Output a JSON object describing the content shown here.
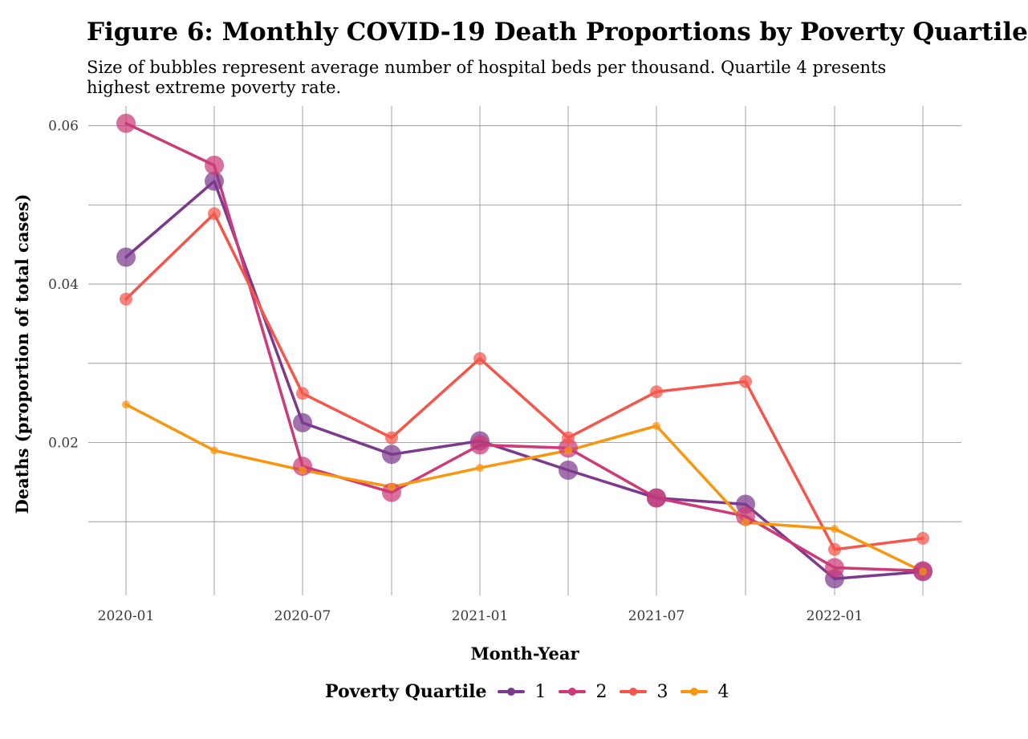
{
  "title": "Figure 6: Monthly COVID-19 Death Proportions by Poverty Quartile",
  "subtitle": "Size of bubbles represent average number of hospital beds per thousand. Quartile 4 presents highest extreme poverty rate.",
  "chart_data": {
    "type": "line",
    "xlabel": "Month-Year",
    "ylabel": "Deaths (proportion of total cases)",
    "x": [
      "2020-01",
      "2020-04",
      "2020-07",
      "2020-10",
      "2021-01",
      "2021-04",
      "2021-07",
      "2021-10",
      "2022-01",
      "2022-04"
    ],
    "x_tick_labels": [
      "2020-01",
      "2020-07",
      "2021-01",
      "2021-07",
      "2022-01"
    ],
    "y_tick_labels": [
      "0.02",
      "0.04",
      "0.06"
    ],
    "y_ticks": [
      0.02,
      0.04,
      0.06
    ],
    "ylim": [
      0.0007,
      0.0625
    ],
    "grid": true,
    "legend_title": "Poverty Quartile",
    "legend_position": "bottom",
    "size_encoding": "Size of bubbles represent average number of hospital beds per thousand",
    "series": [
      {
        "name": "1",
        "color": "#7b3a8c",
        "values": [
          0.0434,
          0.053,
          0.0225,
          0.0185,
          0.0202,
          0.0165,
          0.013,
          0.0122,
          0.0028,
          0.0037
        ],
        "bubble": "large"
      },
      {
        "name": "2",
        "color": "#cc3a77",
        "values": [
          0.0603,
          0.055,
          0.017,
          0.0137,
          0.0197,
          0.0193,
          0.013,
          0.0107,
          0.0042,
          0.0038
        ],
        "bubble": "large"
      },
      {
        "name": "3",
        "color": "#f4564b",
        "values": [
          0.0381,
          0.0489,
          0.0262,
          0.0206,
          0.0306,
          0.0206,
          0.0264,
          0.0277,
          0.0065,
          0.0079
        ],
        "bubble": "medium"
      },
      {
        "name": "4",
        "color": "#f8960f",
        "values": [
          0.0248,
          0.019,
          0.0165,
          0.0144,
          0.0168,
          0.019,
          0.0221,
          0.0099,
          0.0091,
          0.0037
        ],
        "bubble": "small"
      }
    ]
  }
}
